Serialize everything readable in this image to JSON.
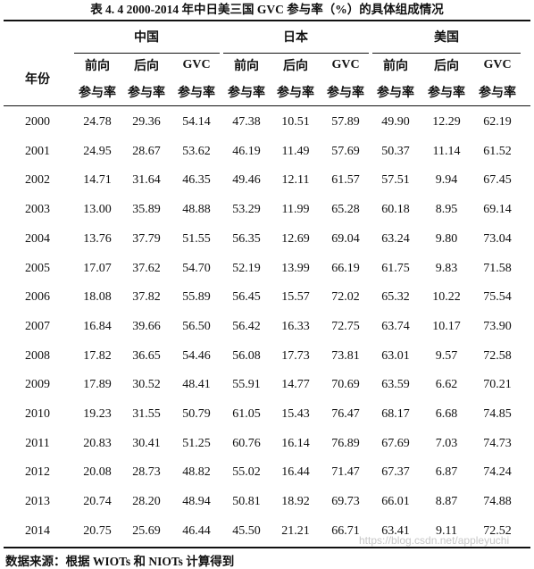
{
  "title": "表 4. 4 2000-2014 年中日美三国 GVC 参与率（%）的具体组成情况",
  "table": {
    "year_header": "年份",
    "groups": [
      "中国",
      "日本",
      "美国"
    ],
    "columns": [
      {
        "top": "前向",
        "bottom": "参与率"
      },
      {
        "top": "后向",
        "bottom": "参与率"
      },
      {
        "top": "GVC",
        "bottom": "参与率"
      },
      {
        "top": "前向",
        "bottom": "参与率"
      },
      {
        "top": "后向",
        "bottom": "参与率"
      },
      {
        "top": "GVC",
        "bottom": "参与率"
      },
      {
        "top": "前向",
        "bottom": "参与率"
      },
      {
        "top": "后向",
        "bottom": "参与率"
      },
      {
        "top": "GVC",
        "bottom": "参与率"
      }
    ],
    "rows": [
      [
        "2000",
        "24.78",
        "29.36",
        "54.14",
        "47.38",
        "10.51",
        "57.89",
        "49.90",
        "12.29",
        "62.19"
      ],
      [
        "2001",
        "24.95",
        "28.67",
        "53.62",
        "46.19",
        "11.49",
        "57.69",
        "50.37",
        "11.14",
        "61.52"
      ],
      [
        "2002",
        "14.71",
        "31.64",
        "46.35",
        "49.46",
        "12.11",
        "61.57",
        "57.51",
        "9.94",
        "67.45"
      ],
      [
        "2003",
        "13.00",
        "35.89",
        "48.88",
        "53.29",
        "11.99",
        "65.28",
        "60.18",
        "8.95",
        "69.14"
      ],
      [
        "2004",
        "13.76",
        "37.79",
        "51.55",
        "56.35",
        "12.69",
        "69.04",
        "63.24",
        "9.80",
        "73.04"
      ],
      [
        "2005",
        "17.07",
        "37.62",
        "54.70",
        "52.19",
        "13.99",
        "66.19",
        "61.75",
        "9.83",
        "71.58"
      ],
      [
        "2006",
        "18.08",
        "37.82",
        "55.89",
        "56.45",
        "15.57",
        "72.02",
        "65.32",
        "10.22",
        "75.54"
      ],
      [
        "2007",
        "16.84",
        "39.66",
        "56.50",
        "56.42",
        "16.33",
        "72.75",
        "63.74",
        "10.17",
        "73.90"
      ],
      [
        "2008",
        "17.82",
        "36.65",
        "54.46",
        "56.08",
        "17.73",
        "73.81",
        "63.01",
        "9.57",
        "72.58"
      ],
      [
        "2009",
        "17.89",
        "30.52",
        "48.41",
        "55.91",
        "14.77",
        "70.69",
        "63.59",
        "6.62",
        "70.21"
      ],
      [
        "2010",
        "19.23",
        "31.55",
        "50.79",
        "61.05",
        "15.43",
        "76.47",
        "68.17",
        "6.68",
        "74.85"
      ],
      [
        "2011",
        "20.83",
        "30.41",
        "51.25",
        "60.76",
        "16.14",
        "76.89",
        "67.69",
        "7.03",
        "74.73"
      ],
      [
        "2012",
        "20.08",
        "28.73",
        "48.82",
        "55.02",
        "16.44",
        "71.47",
        "67.37",
        "6.87",
        "74.24"
      ],
      [
        "2013",
        "20.74",
        "28.20",
        "48.94",
        "50.81",
        "18.92",
        "69.73",
        "66.01",
        "8.87",
        "74.88"
      ],
      [
        "2014",
        "20.75",
        "25.69",
        "46.44",
        "45.50",
        "21.21",
        "66.71",
        "63.41",
        "9.11",
        "72.52"
      ]
    ]
  },
  "footer": "数据来源：根据 WIOTs 和 NIOTs 计算得到",
  "watermark": "https://blog.csdn.net/appleyuchi"
}
